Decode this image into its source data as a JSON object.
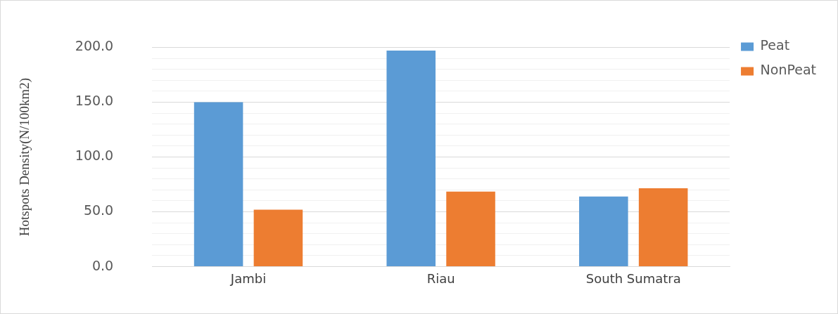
{
  "chart_data": {
    "type": "bar",
    "ylabel": "Hotspots Density(N/100km2)",
    "categories": [
      "Jambi",
      "Riau",
      "South Sumatra"
    ],
    "series": [
      {
        "name": "Peat",
        "color": "#5b9bd5",
        "values": [
          150,
          197,
          64
        ]
      },
      {
        "name": "NonPeat",
        "color": "#ed7d31",
        "values": [
          52,
          68.5,
          71.5
        ]
      }
    ],
    "ylim": [
      0,
      200
    ],
    "yticks": [
      {
        "value": 0,
        "label": "0.0"
      },
      {
        "value": 10,
        "label": null
      },
      {
        "value": 20,
        "label": null
      },
      {
        "value": 30,
        "label": null
      },
      {
        "value": 40,
        "label": null
      },
      {
        "value": 50,
        "label": "50.0"
      },
      {
        "value": 60,
        "label": null
      },
      {
        "value": 70,
        "label": null
      },
      {
        "value": 80,
        "label": null
      },
      {
        "value": 90,
        "label": null
      },
      {
        "value": 100,
        "label": "100.0"
      },
      {
        "value": 110,
        "label": null
      },
      {
        "value": 120,
        "label": null
      },
      {
        "value": 130,
        "label": null
      },
      {
        "value": 140,
        "label": null
      },
      {
        "value": 150,
        "label": "150.0"
      },
      {
        "value": 160,
        "label": null
      },
      {
        "value": 170,
        "label": null
      },
      {
        "value": 180,
        "label": null
      },
      {
        "value": 190,
        "label": null
      },
      {
        "value": 200,
        "label": "200.0"
      }
    ],
    "grid": "y",
    "legend": "top right"
  }
}
